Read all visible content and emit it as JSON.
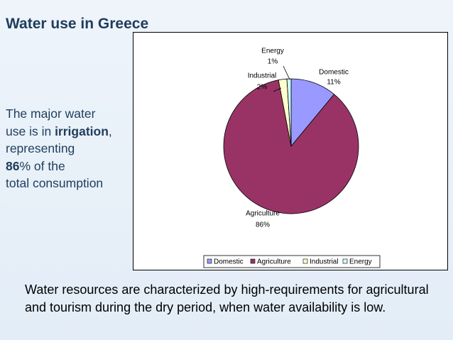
{
  "title": "Water use in Greece",
  "side_text": [
    [
      {
        "text": "The major water",
        "bold": false
      }
    ],
    [
      {
        "text": "use is in ",
        "bold": false
      },
      {
        "text": "irrigation",
        "bold": true
      },
      {
        "text": ",",
        "bold": false
      }
    ],
    [
      {
        "text": "representing",
        "bold": false
      }
    ],
    [
      {
        "text": "86",
        "bold": true
      },
      {
        "text": "% of the",
        "bold": false
      }
    ],
    [
      {
        "text": "total consumption",
        "bold": false
      }
    ]
  ],
  "footer": "Water resources are characterized by high-requirements for agricultural and tourism during the dry period, when water availability is low.",
  "chart_data": {
    "type": "pie",
    "categories": [
      "Domestic",
      "Agriculture",
      "Industrial",
      "Energy"
    ],
    "values": [
      11,
      86,
      2,
      1
    ],
    "value_labels": [
      "11%",
      "86%",
      "2%",
      "1%"
    ],
    "colors": [
      "#9999ff",
      "#993366",
      "#ffffcc",
      "#ccffff"
    ],
    "legend": "bottom"
  }
}
